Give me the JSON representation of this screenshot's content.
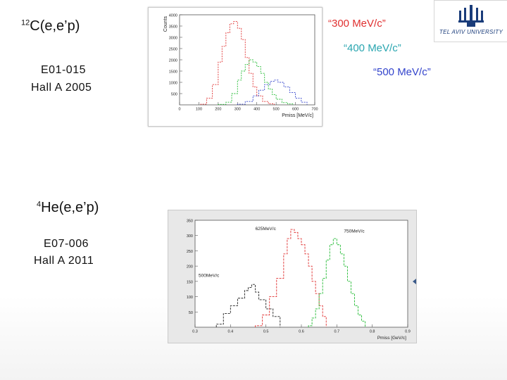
{
  "top_section": {
    "reaction_sup": "12",
    "reaction_rest": "C(e,e’p)",
    "experiment": "E01-015",
    "hall": "Hall A 2005",
    "legend_300": "“300 MeV/c”",
    "legend_400": "“400 MeV/c”",
    "legend_500": "“500 MeV/c”"
  },
  "bottom_section": {
    "reaction_sup": "4",
    "reaction_rest": "He(e,e’p)",
    "experiment": "E07-006",
    "hall": "Hall A 2011"
  },
  "logo": {
    "text": "TEL AVIV UNIVERSITY"
  },
  "colors": {
    "red": "#e03030",
    "green": "#22bb33",
    "blue": "#3344cc",
    "black": "#222222",
    "legend400": "#2aa6b0"
  },
  "chart_data": [
    {
      "type": "line",
      "title": "",
      "xlabel": "Pmiss [MeV/c]",
      "ylabel": "Counts",
      "xlim": [
        0,
        700
      ],
      "ylim": [
        0,
        4000
      ],
      "x_ticks": [
        "0",
        "100",
        "200",
        "300",
        "400",
        "500",
        "600",
        "700"
      ],
      "y_ticks": [
        "500",
        "1000",
        "1500",
        "2000",
        "2500",
        "3000",
        "3500",
        "4000"
      ],
      "series": [
        {
          "name": "“300 MeV/c”",
          "color": "#e03030",
          "x": [
            110,
            140,
            170,
            200,
            220,
            240,
            260,
            280,
            300,
            320,
            340,
            360,
            380,
            400,
            430,
            460,
            490
          ],
          "y": [
            30,
            300,
            900,
            1900,
            2600,
            3200,
            3600,
            3700,
            3400,
            2900,
            2100,
            1400,
            800,
            400,
            150,
            50,
            10
          ]
        },
        {
          "name": "“400 MeV/c”",
          "color": "#22bb33",
          "x": [
            200,
            240,
            270,
            300,
            320,
            340,
            360,
            380,
            400,
            420,
            440,
            460,
            480,
            500,
            530,
            560,
            590
          ],
          "y": [
            20,
            120,
            500,
            1100,
            1500,
            1800,
            2000,
            1900,
            1700,
            1400,
            1000,
            700,
            450,
            250,
            100,
            40,
            10
          ]
        },
        {
          "name": "“500 MeV/c”",
          "color": "#3344cc",
          "x": [
            300,
            340,
            380,
            410,
            440,
            470,
            490,
            510,
            540,
            570,
            600,
            630,
            660
          ],
          "y": [
            30,
            150,
            400,
            650,
            900,
            1050,
            1100,
            1000,
            800,
            550,
            300,
            120,
            30
          ]
        }
      ]
    },
    {
      "type": "line",
      "title": "",
      "xlabel": "Pmiss [GeV/c]",
      "ylabel": "",
      "xlim": [
        0.3,
        0.9
      ],
      "ylim": [
        0,
        350
      ],
      "x_ticks": [
        "0.3",
        "0.4",
        "0.5",
        "0.6",
        "0.7",
        "0.8",
        "0.9"
      ],
      "y_ticks": [
        "50",
        "100",
        "150",
        "200",
        "250",
        "300",
        "350"
      ],
      "series": [
        {
          "name": "500MeV/c",
          "color": "#222222",
          "x": [
            0.36,
            0.38,
            0.4,
            0.42,
            0.44,
            0.45,
            0.46,
            0.47,
            0.48,
            0.5,
            0.52,
            0.54
          ],
          "y": [
            10,
            45,
            70,
            95,
            120,
            130,
            140,
            115,
            90,
            60,
            35,
            5
          ]
        },
        {
          "name": "625MeV/c",
          "color": "#e03030",
          "x": [
            0.47,
            0.49,
            0.51,
            0.53,
            0.55,
            0.56,
            0.57,
            0.58,
            0.59,
            0.6,
            0.61,
            0.62,
            0.63,
            0.64,
            0.65,
            0.66,
            0.67
          ],
          "y": [
            5,
            40,
            100,
            160,
            240,
            290,
            320,
            310,
            290,
            270,
            240,
            200,
            150,
            110,
            70,
            35,
            5
          ]
        },
        {
          "name": "750MeV/c",
          "color": "#22bb33",
          "x": [
            0.62,
            0.63,
            0.64,
            0.65,
            0.66,
            0.67,
            0.68,
            0.69,
            0.7,
            0.71,
            0.72,
            0.73,
            0.74,
            0.75,
            0.76,
            0.77,
            0.78
          ],
          "y": [
            5,
            30,
            60,
            110,
            160,
            220,
            270,
            290,
            270,
            240,
            200,
            150,
            110,
            70,
            40,
            20,
            5
          ]
        }
      ]
    }
  ]
}
